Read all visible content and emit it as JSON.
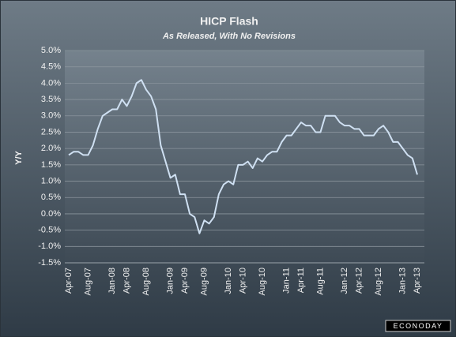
{
  "chart_data": {
    "type": "line",
    "title": "HICP Flash",
    "subtitle": "As Released, With No Revisions",
    "y_label": "Y/Y",
    "logo": "ECONODAY",
    "categories": [
      "Apr-07",
      null,
      null,
      null,
      "Aug-07",
      null,
      null,
      null,
      null,
      "Jan-08",
      null,
      null,
      "Apr-08",
      null,
      null,
      null,
      "Aug-08",
      null,
      null,
      null,
      null,
      "Jan-09",
      null,
      null,
      "Apr-09",
      null,
      null,
      null,
      "Aug-09",
      null,
      null,
      null,
      null,
      "Jan-10",
      null,
      null,
      "Apr-10",
      null,
      null,
      null,
      "Aug-10",
      null,
      null,
      null,
      null,
      "Jan-11",
      null,
      null,
      "Apr-11",
      null,
      null,
      null,
      "Aug-11",
      null,
      null,
      null,
      null,
      "Jan-12",
      null,
      null,
      "Apr-12",
      null,
      null,
      null,
      "Aug-12",
      null,
      null,
      null,
      null,
      "Jan-13",
      null,
      null,
      "Apr-13"
    ],
    "series": [
      {
        "name": "HICP Flash",
        "color": "#cfe0f2",
        "values": [
          1.8,
          1.9,
          1.9,
          1.8,
          1.8,
          2.1,
          2.6,
          3.0,
          3.1,
          3.2,
          3.2,
          3.5,
          3.3,
          3.6,
          4.0,
          4.1,
          3.8,
          3.6,
          3.2,
          2.1,
          1.6,
          1.1,
          1.2,
          0.6,
          0.6,
          0.0,
          -0.1,
          -0.6,
          -0.2,
          -0.3,
          -0.1,
          0.6,
          0.9,
          1.0,
          0.9,
          1.5,
          1.5,
          1.6,
          1.4,
          1.7,
          1.6,
          1.8,
          1.9,
          1.9,
          2.2,
          2.4,
          2.4,
          2.6,
          2.8,
          2.7,
          2.7,
          2.5,
          2.5,
          3.0,
          3.0,
          3.0,
          2.8,
          2.7,
          2.7,
          2.6,
          2.6,
          2.4,
          2.4,
          2.4,
          2.6,
          2.7,
          2.5,
          2.2,
          2.2,
          2.0,
          1.8,
          1.7,
          1.2
        ]
      }
    ],
    "ylim": [
      -1.5,
      5.0
    ],
    "yticks": [
      {
        "value": -1.5,
        "label": "-1.5%"
      },
      {
        "value": -1.0,
        "label": "-1.0%"
      },
      {
        "value": -0.5,
        "label": "-0.5%"
      },
      {
        "value": 0.0,
        "label": "0.0%"
      },
      {
        "value": 0.5,
        "label": "0.5%"
      },
      {
        "value": 1.0,
        "label": "1.0%"
      },
      {
        "value": 1.5,
        "label": "1.5%"
      },
      {
        "value": 2.0,
        "label": "2.0%"
      },
      {
        "value": 2.5,
        "label": "2.5%"
      },
      {
        "value": 3.0,
        "label": "3.0%"
      },
      {
        "value": 3.5,
        "label": "3.5%"
      },
      {
        "value": 4.0,
        "label": "4.0%"
      },
      {
        "value": 4.5,
        "label": "4.5%"
      },
      {
        "value": 5.0,
        "label": "5.0%"
      }
    ],
    "grid": true
  }
}
